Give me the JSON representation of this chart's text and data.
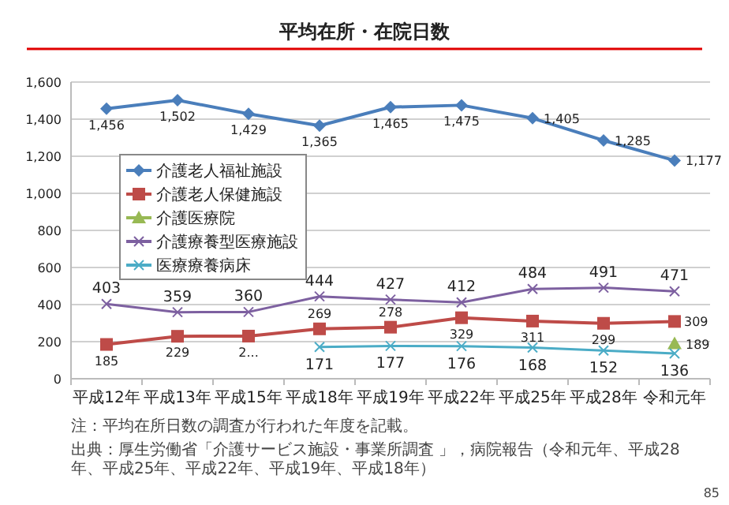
{
  "chart_data": {
    "type": "line",
    "title": "平均在所・在院日数",
    "categories": [
      "平成12年",
      "平成13年",
      "平成15年",
      "平成18年",
      "平成19年",
      "平成22年",
      "平成25年",
      "平成28年",
      "令和元年"
    ],
    "series": [
      {
        "name": "介護老人福祉施設",
        "color": "#4a7ebb",
        "marker": "diamond",
        "values": [
          1456,
          1502,
          1429,
          1365,
          1465,
          1475,
          1405,
          1285,
          1177
        ],
        "value_labels": [
          "1,456",
          "1,502",
          "1,429",
          "1,365",
          "1,465",
          "1,475",
          "1,405",
          "1,285",
          "1,177"
        ]
      },
      {
        "name": "介護老人保健施設",
        "color": "#be4b48",
        "marker": "square",
        "values": [
          185,
          229,
          230,
          269,
          278,
          329,
          311,
          299,
          309
        ],
        "value_labels": [
          "185",
          "229",
          "2...",
          "269",
          "278",
          "329",
          "311",
          "299",
          "309"
        ]
      },
      {
        "name": "介護医療院",
        "color": "#98b954",
        "marker": "triangle",
        "values": [
          null,
          null,
          null,
          null,
          null,
          null,
          null,
          null,
          189
        ],
        "value_labels": [
          null,
          null,
          null,
          null,
          null,
          null,
          null,
          null,
          "189"
        ]
      },
      {
        "name": "介護療養型医療施設",
        "color": "#7d60a0",
        "marker": "cross",
        "values": [
          403,
          359,
          360,
          444,
          427,
          412,
          484,
          491,
          471
        ],
        "value_labels": [
          "403",
          "359",
          "360",
          "444",
          "427",
          "412",
          "484",
          "491",
          "471"
        ]
      },
      {
        "name": "医療療養病床",
        "color": "#4bacc6",
        "marker": "cross",
        "values": [
          null,
          null,
          null,
          171,
          177,
          176,
          168,
          152,
          136
        ],
        "value_labels": [
          null,
          null,
          null,
          "171",
          "177",
          "176",
          "168",
          "152",
          "136"
        ]
      }
    ],
    "ylim": [
      0,
      1600
    ],
    "yticks": [
      {
        "value": 0,
        "label": "0"
      },
      {
        "value": 200,
        "label": "200"
      },
      {
        "value": 400,
        "label": "400"
      },
      {
        "value": 600,
        "label": "600"
      },
      {
        "value": 800,
        "label": "800"
      },
      {
        "value": 1000,
        "label": "1,000"
      },
      {
        "value": 1200,
        "label": "1,200"
      },
      {
        "value": 1400,
        "label": "1,400"
      },
      {
        "value": 1600,
        "label": "1,600"
      }
    ],
    "grid": "y",
    "legend": "left",
    "annotations": [
      "注：平均在所日数の調査が行われた年度を記載。",
      "出典：厚生労働省「介護サービス施設・事業所調査 」，病院報告（令和元年、平成28年、平成25年、平成22年、平成19年、平成18年）",
      "85"
    ]
  }
}
